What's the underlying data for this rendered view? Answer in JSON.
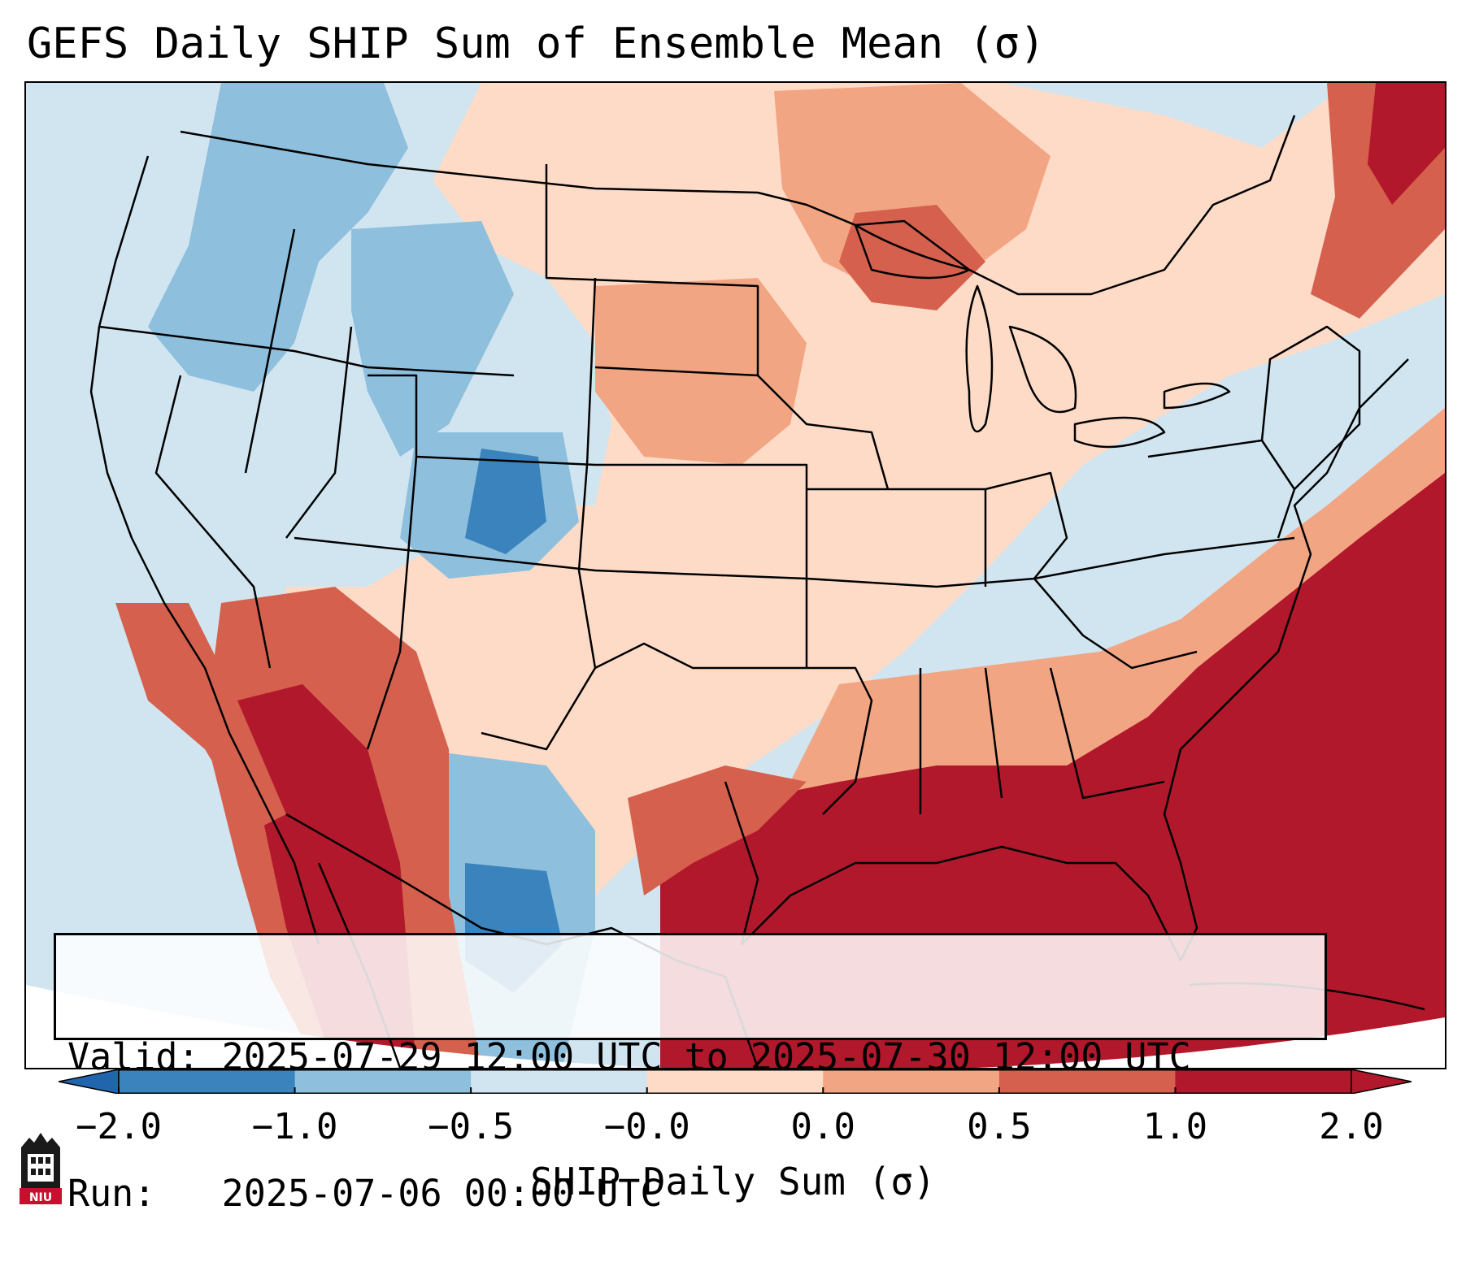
{
  "title": "GEFS Daily SHIP Sum of Ensemble Mean (σ)",
  "info": {
    "valid": "Valid: 2025-07-29 12:00 UTC to 2025-07-30 12:00 UTC",
    "run": "Run:   2025-07-06 00:00 UTC"
  },
  "colorbar": {
    "label": "SHIP Daily Sum (σ)",
    "ticks": [
      "−2.0",
      "−1.0",
      "−0.5",
      "−0.0",
      "0.0",
      "0.5",
      "1.0",
      "2.0"
    ],
    "colors": [
      "#3a83bd",
      "#8ebfdd",
      "#d1e5f0",
      "#f7f7f7",
      "#fddbc7",
      "#f2a583",
      "#d5604e",
      "#b2182b"
    ],
    "under_color": "#2166ac",
    "over_color": "#b2182b"
  },
  "map": {
    "region": "Contiguous United States",
    "background_color": "#d1e5f0"
  },
  "logo": {
    "icon": "niu-logo-icon",
    "text": "NIU",
    "color": "#c8102e"
  }
}
